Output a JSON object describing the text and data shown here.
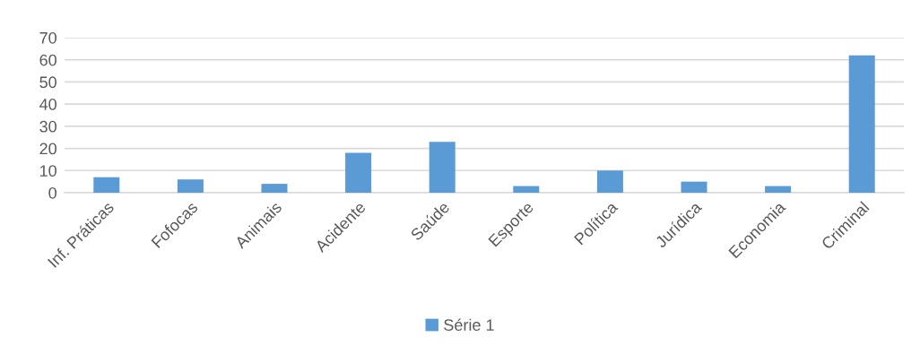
{
  "chart_data": {
    "type": "bar",
    "categories": [
      "Inf. Práticas",
      "Fofocas",
      "Animais",
      "Acidente",
      "Saúde",
      "Esporte",
      "Política",
      "Jurídica",
      "Economia",
      "Criminal"
    ],
    "series": [
      {
        "name": "Série 1",
        "color": "#5b9bd5",
        "values": [
          7,
          6,
          4,
          18,
          23,
          3,
          10,
          5,
          3,
          62
        ]
      }
    ],
    "ylim": [
      0,
      70
    ],
    "yticks": [
      0,
      10,
      20,
      30,
      40,
      50,
      60,
      70
    ],
    "grid": "y",
    "legend": "bottom"
  }
}
